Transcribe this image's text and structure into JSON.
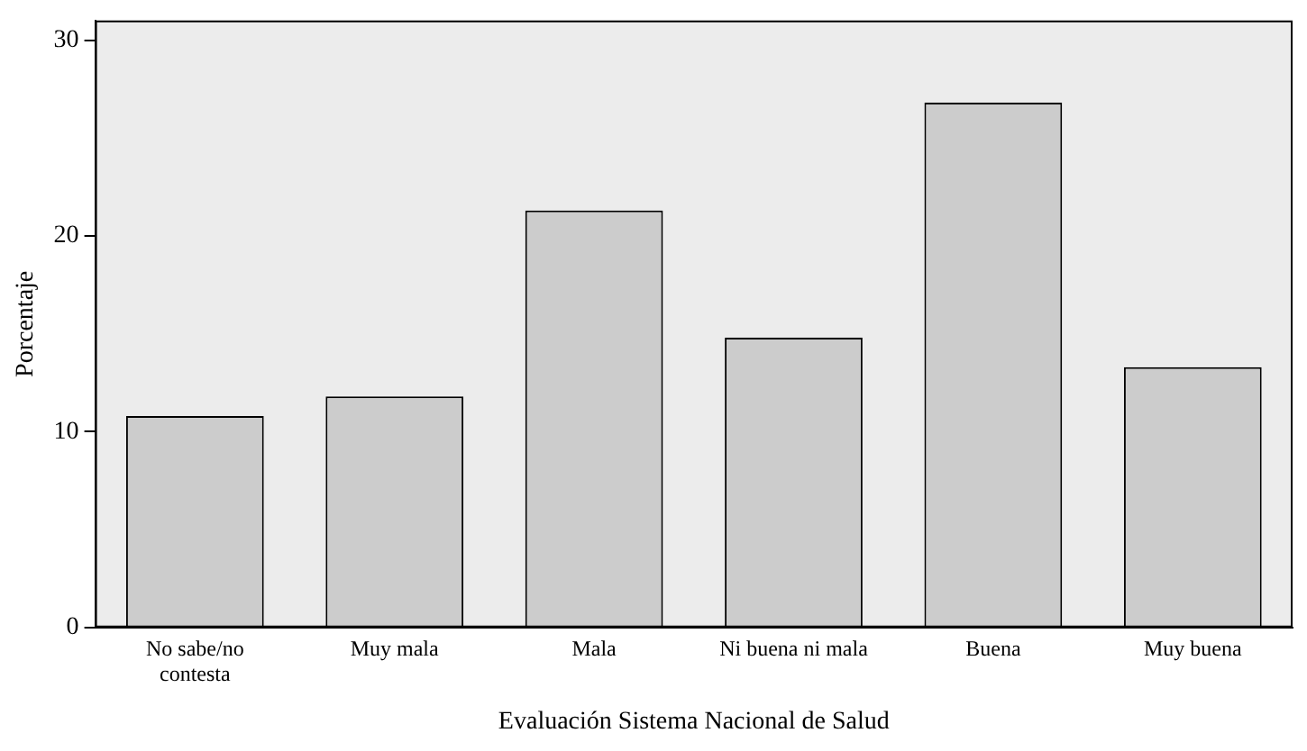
{
  "chart_data": {
    "type": "bar",
    "xlabel": "Evaluación Sistema Nacional de Salud",
    "ylabel": "Porcentaje",
    "categories": [
      "No sabe/no contesta",
      "Muy mala",
      "Mala",
      "Ni buena ni mala",
      "Buena",
      "Muy buena"
    ],
    "values": [
      10.8,
      11.8,
      21.3,
      14.8,
      26.8,
      13.3
    ],
    "color": "#cccccc",
    "ylim": [
      0,
      31
    ],
    "yticks": [
      0,
      10,
      20,
      30
    ],
    "grid": false,
    "legend": false
  }
}
